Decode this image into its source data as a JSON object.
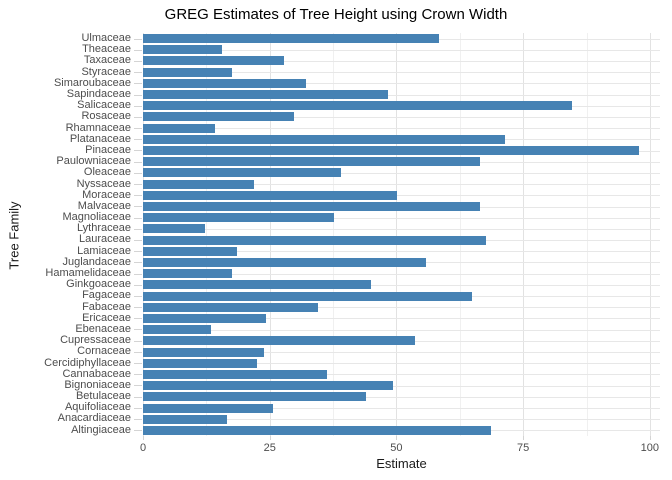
{
  "chart_data": {
    "type": "bar",
    "orientation": "horizontal",
    "title": "GREG Estimates of Tree Height using Crown Width",
    "xlabel": "Estimate",
    "ylabel": "Tree Family",
    "xlim": [
      0,
      102
    ],
    "x_ticks": [
      0,
      25,
      50,
      75,
      100
    ],
    "x_minor_gridlines": [
      12.5,
      37.5,
      62.5,
      87.5
    ],
    "grid": "major+minor vertical, major horizontal, light gray on white",
    "legend": "none",
    "bar_color": "#4682B4",
    "categories": [
      "Ulmaceae",
      "Theaceae",
      "Taxaceae",
      "Styraceae",
      "Simaroubaceae",
      "Sapindaceae",
      "Salicaceae",
      "Rosaceae",
      "Rhamnaceae",
      "Platanaceae",
      "Pinaceae",
      "Paulowniaceae",
      "Oleaceae",
      "Nyssaceae",
      "Moraceae",
      "Malvaceae",
      "Magnoliaceae",
      "Lythraceae",
      "Lauraceae",
      "Lamiaceae",
      "Juglandaceae",
      "Hamamelidaceae",
      "Ginkgoaceae",
      "Fagaceae",
      "Fabaceae",
      "Ericaceae",
      "Ebenaceae",
      "Cupressaceae",
      "Cornaceae",
      "Cercidiphyllaceae",
      "Cannabaceae",
      "Bignoniaceae",
      "Betulaceae",
      "Aquifoliaceae",
      "Anacardiaceae",
      "Altingiaceae"
    ],
    "values": [
      58.3,
      15.6,
      27.8,
      17.5,
      32.2,
      48.4,
      84.7,
      29.7,
      14.3,
      71.4,
      97.9,
      66.5,
      39.0,
      21.9,
      50.2,
      66.5,
      37.6,
      12.2,
      67.7,
      18.5,
      55.8,
      17.6,
      45.0,
      65.0,
      34.5,
      24.3,
      13.4,
      53.6,
      23.9,
      22.5,
      36.4,
      49.3,
      43.9,
      25.6,
      16.5,
      68.6
    ]
  },
  "colors": {
    "bar": "#4682B4",
    "grid_major": "#e2e2e2",
    "grid_minor": "#f0f0f0",
    "axis_text": "#4d4d4d",
    "title_text": "#000000"
  }
}
